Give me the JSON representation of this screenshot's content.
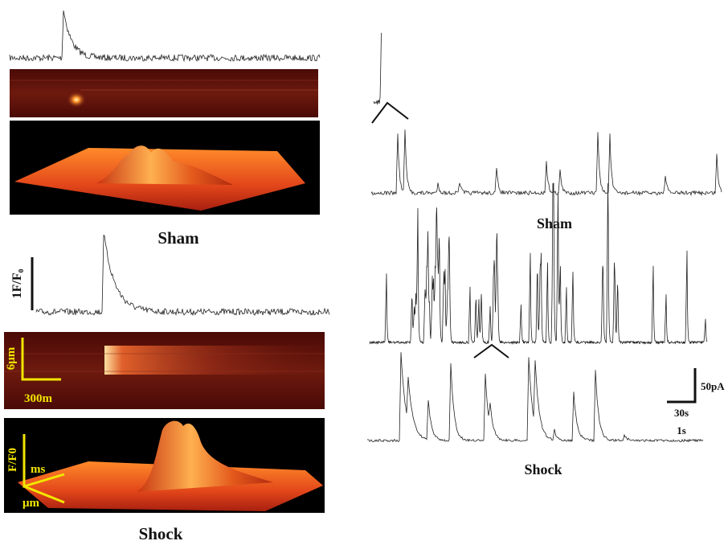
{
  "panels": {
    "left": {
      "sham": {
        "label": "Sham"
      },
      "shock": {
        "label": "Shock",
        "scale_bar": {
          "amplitude": "1F/F₀",
          "space": "6μm",
          "time": "300m"
        },
        "axes": {
          "z": "F/F0",
          "x": "ms",
          "y": "μm"
        }
      }
    },
    "right": {
      "sham": {
        "label": "Sham"
      },
      "shock": {
        "label": "Shock"
      },
      "scale_bar": {
        "current": "50pA",
        "time_long": "30s",
        "time_short": "1s"
      }
    }
  }
}
